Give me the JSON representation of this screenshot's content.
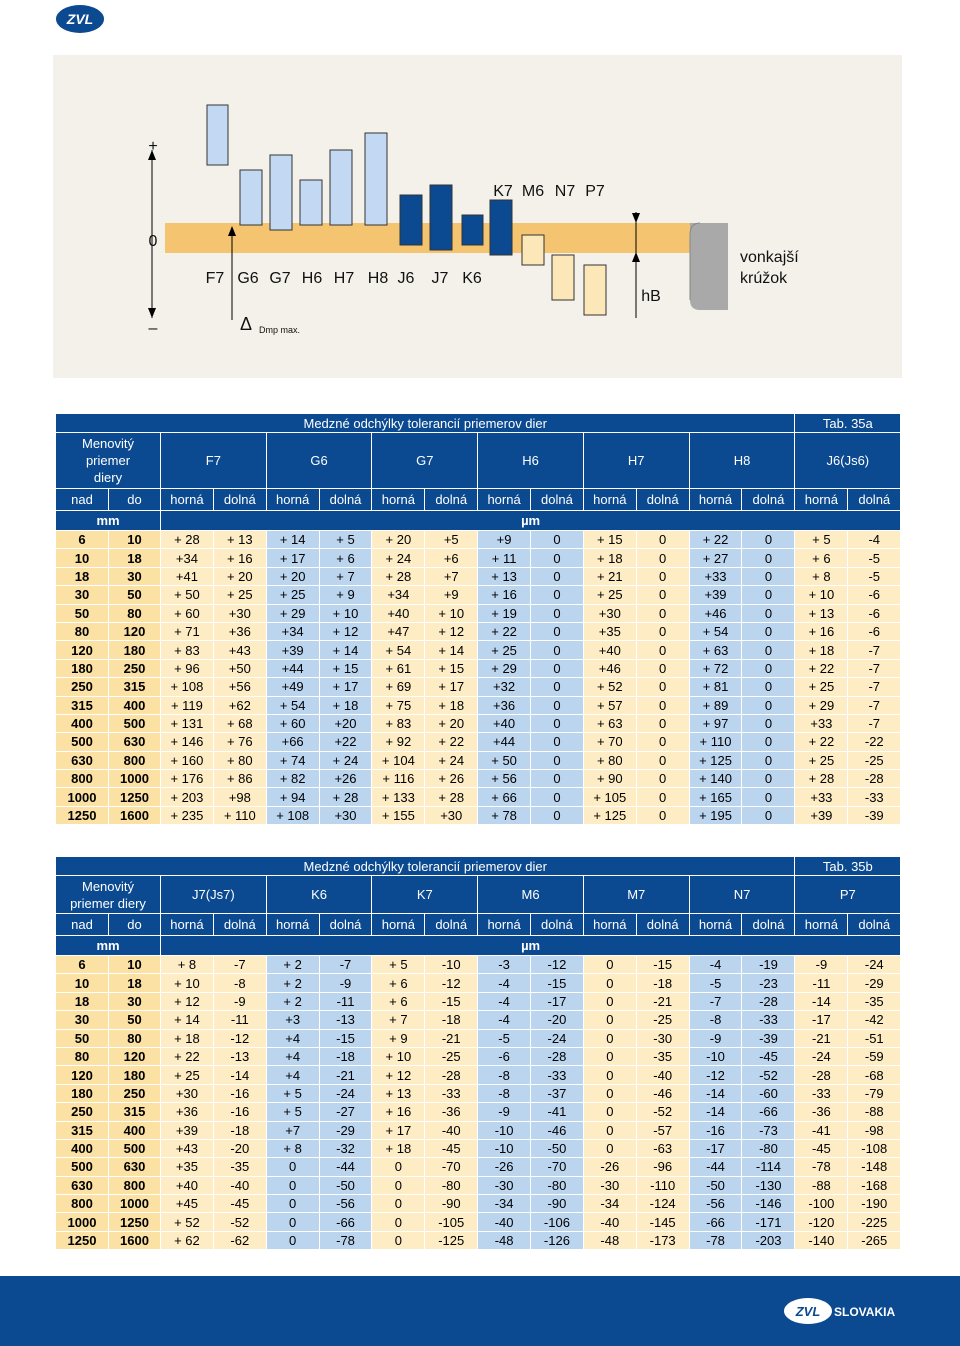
{
  "header": {
    "logo": "ZVL"
  },
  "diagram": {
    "plus": "+",
    "zero": "0",
    "minus": "–",
    "labels_bottom": [
      "F7",
      "G6",
      "G7",
      "H6",
      "H7",
      "H8",
      "J6",
      "J7",
      "K6"
    ],
    "labels_top": [
      "K7",
      "M6",
      "N7",
      "P7"
    ],
    "hb": "hB",
    "ring": [
      "vonkajší",
      "krúžok"
    ],
    "delta": "Δ",
    "dmp": "Dmp max."
  },
  "tables": [
    {
      "title": "Medzné odchýlky tolerancií priemerov dier",
      "tab": "Tab. 35a",
      "corner": [
        "Menovitý",
        "priemer",
        "diery"
      ],
      "groups": [
        "F7",
        "G6",
        "G7",
        "H6",
        "H7",
        "H8",
        "J6(Js6)"
      ],
      "sub": [
        "nad",
        "do"
      ],
      "limits": [
        "horná",
        "dolná"
      ],
      "unit_mm": "mm",
      "unit_um": "µm",
      "rows": [
        [
          "6",
          "10",
          "+ 28",
          "+ 13",
          "+ 14",
          "+ 5",
          "+ 20",
          "+5",
          "+9",
          "0",
          "+ 15",
          "0",
          "+ 22",
          "0",
          "+ 5",
          "-4"
        ],
        [
          "10",
          "18",
          "+34",
          "+ 16",
          "+ 17",
          "+ 6",
          "+ 24",
          "+6",
          "+ 11",
          "0",
          "+ 18",
          "0",
          "+ 27",
          "0",
          "+ 6",
          "-5"
        ],
        [
          "18",
          "30",
          "+41",
          "+ 20",
          "+ 20",
          "+ 7",
          "+ 28",
          "+7",
          "+ 13",
          "0",
          "+ 21",
          "0",
          "+33",
          "0",
          "+ 8",
          "-5"
        ],
        [
          "30",
          "50",
          "+ 50",
          "+ 25",
          "+ 25",
          "+ 9",
          "+34",
          "+9",
          "+ 16",
          "0",
          "+ 25",
          "0",
          "+39",
          "0",
          "+ 10",
          "-6"
        ],
        [
          "50",
          "80",
          "+ 60",
          "+30",
          "+ 29",
          "+ 10",
          "+40",
          "+ 10",
          "+ 19",
          "0",
          "+30",
          "0",
          "+46",
          "0",
          "+ 13",
          "-6"
        ],
        [
          "80",
          "120",
          "+ 71",
          "+36",
          "+34",
          "+ 12",
          "+47",
          "+ 12",
          "+ 22",
          "0",
          "+35",
          "0",
          "+ 54",
          "0",
          "+ 16",
          "-6"
        ],
        [
          "120",
          "180",
          "+ 83",
          "+43",
          "+39",
          "+ 14",
          "+ 54",
          "+ 14",
          "+ 25",
          "0",
          "+40",
          "0",
          "+ 63",
          "0",
          "+ 18",
          "-7"
        ],
        [
          "180",
          "250",
          "+ 96",
          "+50",
          "+44",
          "+ 15",
          "+ 61",
          "+ 15",
          "+ 29",
          "0",
          "+46",
          "0",
          "+ 72",
          "0",
          "+ 22",
          "-7"
        ],
        [
          "250",
          "315",
          "+ 108",
          "+56",
          "+49",
          "+ 17",
          "+ 69",
          "+ 17",
          "+32",
          "0",
          "+ 52",
          "0",
          "+ 81",
          "0",
          "+ 25",
          "-7"
        ],
        [
          "315",
          "400",
          "+ 119",
          "+62",
          "+ 54",
          "+ 18",
          "+ 75",
          "+ 18",
          "+36",
          "0",
          "+ 57",
          "0",
          "+ 89",
          "0",
          "+ 29",
          "-7"
        ],
        [
          "400",
          "500",
          "+ 131",
          "+ 68",
          "+ 60",
          "+20",
          "+ 83",
          "+ 20",
          "+40",
          "0",
          "+ 63",
          "0",
          "+ 97",
          "0",
          "+33",
          "-7"
        ],
        [
          "500",
          "630",
          "+ 146",
          "+ 76",
          "+66",
          "+22",
          "+ 92",
          "+ 22",
          "+44",
          "0",
          "+ 70",
          "0",
          "+ 110",
          "0",
          "+ 22",
          "-22"
        ],
        [
          "630",
          "800",
          "+ 160",
          "+ 80",
          "+ 74",
          "+ 24",
          "+ 104",
          "+ 24",
          "+ 50",
          "0",
          "+ 80",
          "0",
          "+ 125",
          "0",
          "+ 25",
          "-25"
        ],
        [
          "800",
          "1000",
          "+ 176",
          "+ 86",
          "+ 82",
          "+26",
          "+ 116",
          "+ 26",
          "+ 56",
          "0",
          "+ 90",
          "0",
          "+ 140",
          "0",
          "+ 28",
          "-28"
        ],
        [
          "1000",
          "1250",
          "+ 203",
          "+98",
          "+ 94",
          "+ 28",
          "+ 133",
          "+ 28",
          "+ 66",
          "0",
          "+ 105",
          "0",
          "+ 165",
          "0",
          "+33",
          "-33"
        ],
        [
          "1250",
          "1600",
          "+ 235",
          "+ 110",
          "+ 108",
          "+30",
          "+ 155",
          "+30",
          "+ 78",
          "0",
          "+ 125",
          "0",
          "+ 195",
          "0",
          "+39",
          "-39"
        ]
      ]
    },
    {
      "title": "Medzné odchýlky tolerancií priemerov dier",
      "tab": "Tab. 35b",
      "corner": [
        "Menovitý",
        "priemer diery"
      ],
      "groups": [
        "J7(Js7)",
        "K6",
        "K7",
        "M6",
        "M7",
        "N7",
        "P7"
      ],
      "sub": [
        "nad",
        "do"
      ],
      "limits": [
        "horná",
        "dolná"
      ],
      "unit_mm": "mm",
      "unit_um": "µm",
      "rows": [
        [
          "6",
          "10",
          "+ 8",
          "-7",
          "+ 2",
          "-7",
          "+ 5",
          "-10",
          "-3",
          "-12",
          "0",
          "-15",
          "-4",
          "-19",
          "-9",
          "-24"
        ],
        [
          "10",
          "18",
          "+ 10",
          "-8",
          "+ 2",
          "-9",
          "+ 6",
          "-12",
          "-4",
          "-15",
          "0",
          "-18",
          "-5",
          "-23",
          "-11",
          "-29"
        ],
        [
          "18",
          "30",
          "+ 12",
          "-9",
          "+ 2",
          "-11",
          "+ 6",
          "-15",
          "-4",
          "-17",
          "0",
          "-21",
          "-7",
          "-28",
          "-14",
          "-35"
        ],
        [
          "30",
          "50",
          "+ 14",
          "-11",
          "+3",
          "-13",
          "+ 7",
          "-18",
          "-4",
          "-20",
          "0",
          "-25",
          "-8",
          "-33",
          "-17",
          "-42"
        ],
        [
          "50",
          "80",
          "+ 18",
          "-12",
          "+4",
          "-15",
          "+ 9",
          "-21",
          "-5",
          "-24",
          "0",
          "-30",
          "-9",
          "-39",
          "-21",
          "-51"
        ],
        [
          "80",
          "120",
          "+ 22",
          "-13",
          "+4",
          "-18",
          "+ 10",
          "-25",
          "-6",
          "-28",
          "0",
          "-35",
          "-10",
          "-45",
          "-24",
          "-59"
        ],
        [
          "120",
          "180",
          "+ 25",
          "-14",
          "+4",
          "-21",
          "+ 12",
          "-28",
          "-8",
          "-33",
          "0",
          "-40",
          "-12",
          "-52",
          "-28",
          "-68"
        ],
        [
          "180",
          "250",
          "+30",
          "-16",
          "+ 5",
          "-24",
          "+ 13",
          "-33",
          "-8",
          "-37",
          "0",
          "-46",
          "-14",
          "-60",
          "-33",
          "-79"
        ],
        [
          "250",
          "315",
          "+36",
          "-16",
          "+ 5",
          "-27",
          "+ 16",
          "-36",
          "-9",
          "-41",
          "0",
          "-52",
          "-14",
          "-66",
          "-36",
          "-88"
        ],
        [
          "315",
          "400",
          "+39",
          "-18",
          "+7",
          "-29",
          "+ 17",
          "-40",
          "-10",
          "-46",
          "0",
          "-57",
          "-16",
          "-73",
          "-41",
          "-98"
        ],
        [
          "400",
          "500",
          "+43",
          "-20",
          "+ 8",
          "-32",
          "+ 18",
          "-45",
          "-10",
          "-50",
          "0",
          "-63",
          "-17",
          "-80",
          "-45",
          "-108"
        ],
        [
          "500",
          "630",
          "+35",
          "-35",
          "0",
          "-44",
          "0",
          "-70",
          "-26",
          "-70",
          "-26",
          "-96",
          "-44",
          "-114",
          "-78",
          "-148"
        ],
        [
          "630",
          "800",
          "+40",
          "-40",
          "0",
          "-50",
          "0",
          "-80",
          "-30",
          "-80",
          "-30",
          "-110",
          "-50",
          "-130",
          "-88",
          "-168"
        ],
        [
          "800",
          "1000",
          "+45",
          "-45",
          "0",
          "-56",
          "0",
          "-90",
          "-34",
          "-90",
          "-34",
          "-124",
          "-56",
          "-146",
          "-100",
          "-190"
        ],
        [
          "1000",
          "1250",
          "+ 52",
          "-52",
          "0",
          "-66",
          "0",
          "-105",
          "-40",
          "-106",
          "-40",
          "-145",
          "-66",
          "-171",
          "-120",
          "-225"
        ],
        [
          "1250",
          "1600",
          "+ 62",
          "-62",
          "0",
          "-78",
          "0",
          "-125",
          "-48",
          "-126",
          "-48",
          "-173",
          "-78",
          "-203",
          "-140",
          "-265"
        ]
      ]
    }
  ],
  "footer": {
    "logo": "ZVL",
    "text": "SLOVAKIA"
  }
}
